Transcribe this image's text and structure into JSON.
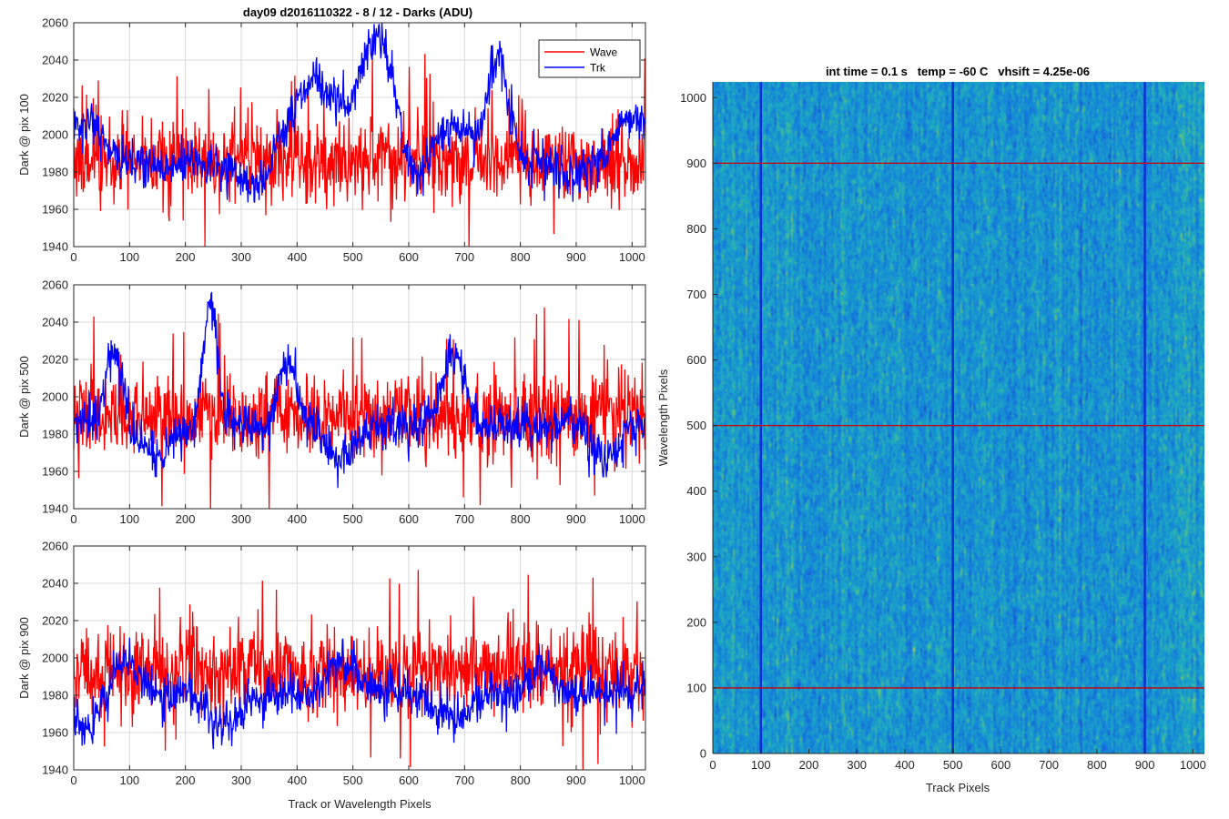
{
  "figure": {
    "suptitle": "day09 d2016110322 - 8 / 12 - Darks (ADU)"
  },
  "colors": {
    "wave": "#ff0000",
    "trk": "#0000ff",
    "grid": "#d9d9d9",
    "axis": "#262626"
  },
  "chart_data": [
    {
      "type": "line",
      "ylabel": "Dark @ pix 100",
      "xlabel": "",
      "xlim": [
        0,
        1024
      ],
      "ylim": [
        1940,
        2060
      ],
      "xticks": [
        0,
        100,
        200,
        300,
        400,
        500,
        600,
        700,
        800,
        900,
        1000
      ],
      "yticks": [
        1940,
        1960,
        1980,
        2000,
        2020,
        2040,
        2060
      ],
      "legend": {
        "position": "top-right",
        "entries": [
          "Wave",
          "Trk"
        ]
      },
      "series": [
        {
          "name": "Wave",
          "color": "#ff0000",
          "base": 1986,
          "sd": 11,
          "spike_rate": 0.04,
          "seed": 11,
          "bumps": []
        },
        {
          "name": "Trk",
          "color": "#0000ff",
          "base": 1984,
          "sd": 6,
          "spike_rate": 0.0,
          "seed": 12,
          "bumps": [
            [
              20,
              2008,
              30
            ],
            [
              330,
              1968,
              25
            ],
            [
              430,
              2028,
              45
            ],
            [
              555,
              2038,
              25
            ],
            [
              520,
              2012,
              25
            ],
            [
              675,
              2003,
              40
            ],
            [
              760,
              2040,
              18
            ],
            [
              610,
              1970,
              20
            ],
            [
              900,
              1978,
              20
            ],
            [
              1000,
              2010,
              25
            ]
          ]
        }
      ]
    },
    {
      "type": "line",
      "ylabel": "Dark @ pix 500",
      "xlabel": "",
      "xlim": [
        0,
        1024
      ],
      "ylim": [
        1940,
        2060
      ],
      "xticks": [
        0,
        100,
        200,
        300,
        400,
        500,
        600,
        700,
        800,
        900,
        1000
      ],
      "yticks": [
        1940,
        1960,
        1980,
        2000,
        2020,
        2040,
        2060
      ],
      "series": [
        {
          "name": "Wave",
          "color": "#ff0000",
          "base": 1990,
          "sd": 11,
          "spike_rate": 0.04,
          "seed": 21,
          "bumps": []
        },
        {
          "name": "Trk",
          "color": "#0000ff",
          "base": 1985,
          "sd": 6,
          "spike_rate": 0.0,
          "seed": 22,
          "bumps": [
            [
              70,
              2024,
              15
            ],
            [
              150,
              1968,
              25
            ],
            [
              245,
              2048,
              12
            ],
            [
              385,
              2022,
              15
            ],
            [
              480,
              1967,
              25
            ],
            [
              680,
              2022,
              20
            ],
            [
              840,
              1984,
              30
            ],
            [
              950,
              1966,
              20
            ]
          ]
        }
      ]
    },
    {
      "type": "line",
      "ylabel": "Dark @ pix 900",
      "xlabel": "Track or Wavelength Pixels",
      "xlim": [
        0,
        1024
      ],
      "ylim": [
        1940,
        2060
      ],
      "xticks": [
        0,
        100,
        200,
        300,
        400,
        500,
        600,
        700,
        800,
        900,
        1000
      ],
      "yticks": [
        1940,
        1960,
        1980,
        2000,
        2020,
        2040,
        2060
      ],
      "series": [
        {
          "name": "Wave",
          "color": "#ff0000",
          "base": 1993,
          "sd": 11,
          "spike_rate": 0.04,
          "seed": 31,
          "bumps": []
        },
        {
          "name": "Trk",
          "color": "#0000ff",
          "base": 1981,
          "sd": 6,
          "spike_rate": 0.0,
          "seed": 32,
          "bumps": [
            [
              20,
              1965,
              30
            ],
            [
              90,
              2000,
              20
            ],
            [
              270,
              1962,
              30
            ],
            [
              480,
              1998,
              25
            ],
            [
              680,
              1967,
              25
            ],
            [
              840,
              1998,
              15
            ],
            [
              1000,
              1983,
              30
            ]
          ]
        }
      ]
    },
    {
      "type": "heatmap",
      "title": "int time = 0.1 s   temp = -60 C   vhsift = 4.25e-06",
      "xlabel": "Track Pixels",
      "ylabel": "Wavelength Pixels",
      "xlim": [
        0,
        1024
      ],
      "ylim": [
        0,
        1024
      ],
      "xticks": [
        0,
        100,
        200,
        300,
        400,
        500,
        600,
        700,
        800,
        900,
        1000
      ],
      "yticks": [
        0,
        100,
        200,
        300,
        400,
        500,
        600,
        700,
        800,
        900,
        1000
      ],
      "colormap": "parula",
      "dark_columns": [
        100,
        500,
        900
      ],
      "marker_rows": [
        100,
        500,
        900
      ],
      "marker_row_color": "#cc0000",
      "dark_column_color": "#0a2fd6"
    }
  ]
}
